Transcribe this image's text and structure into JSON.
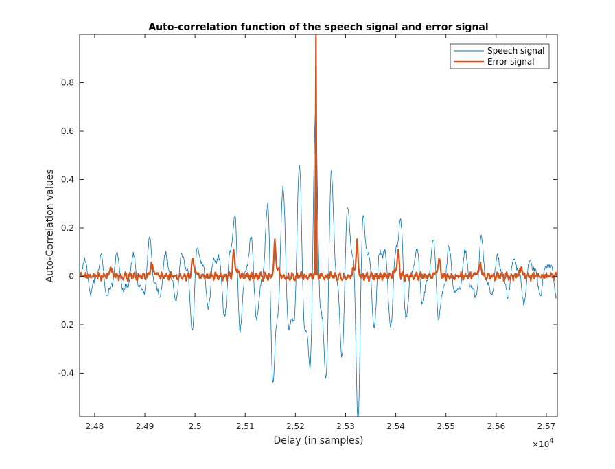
{
  "chart_data": {
    "type": "line",
    "title": "Auto-correlation function of the speech signal and error signal",
    "xlabel": "Delay (in samples)",
    "ylabel": "Auto-Correlation values",
    "x_exponent_label": "×10",
    "x_exponent_power": "4",
    "xlim": [
      24770,
      25722
    ],
    "ylim": [
      -0.58,
      1.0
    ],
    "x_ticks": [
      24800,
      24900,
      25000,
      25100,
      25200,
      25300,
      25400,
      25500,
      25600,
      25700
    ],
    "x_tick_labels": [
      "2.48",
      "2.49",
      "2.5",
      "2.51",
      "2.52",
      "2.53",
      "2.54",
      "2.55",
      "2.56",
      "2.57"
    ],
    "y_ticks": [
      -0.4,
      -0.2,
      0,
      0.2,
      0.4,
      0.6,
      0.8
    ],
    "y_tick_labels": [
      "-0.4",
      "-0.2",
      "0",
      "0.2",
      "0.4",
      "0.6",
      "0.8"
    ],
    "grid": false,
    "legend_position": "top-right",
    "center_lag": 25241,
    "series": [
      {
        "name": "Speech signal",
        "color": "#0072BD",
        "line_width": 0.8,
        "description_points": [
          {
            "x": 24790,
            "y": 0.03
          },
          {
            "x": 24870,
            "y": -0.1
          },
          {
            "x": 25020,
            "y": -0.18
          },
          {
            "x": 25040,
            "y": 0.24
          },
          {
            "x": 25120,
            "y": -0.28
          },
          {
            "x": 25152,
            "y": 0.32
          },
          {
            "x": 25174,
            "y": -0.29
          },
          {
            "x": 25226,
            "y": 0.4
          },
          {
            "x": 25241,
            "y": -0.58
          },
          {
            "x": 25256,
            "y": 0.4
          },
          {
            "x": 25330,
            "y": 0.32
          },
          {
            "x": 25370,
            "y": -0.28
          },
          {
            "x": 25440,
            "y": 0.15
          },
          {
            "x": 25540,
            "y": 0.13
          },
          {
            "x": 25650,
            "y": -0.1
          },
          {
            "x": 25710,
            "y": 0.05
          }
        ]
      },
      {
        "name": "Error signal",
        "color": "#D95319",
        "line_width": 2.2,
        "description_points": [
          {
            "x": 24790,
            "y": 0.0
          },
          {
            "x": 24955,
            "y": 0.07
          },
          {
            "x": 25070,
            "y": 0.1
          },
          {
            "x": 25170,
            "y": 0.12
          },
          {
            "x": 25241,
            "y": 1.0
          },
          {
            "x": 25310,
            "y": 0.16
          },
          {
            "x": 25395,
            "y": 0.1
          },
          {
            "x": 25490,
            "y": 0.07
          },
          {
            "x": 25620,
            "y": 0.07
          },
          {
            "x": 25720,
            "y": 0.0
          }
        ]
      }
    ]
  }
}
